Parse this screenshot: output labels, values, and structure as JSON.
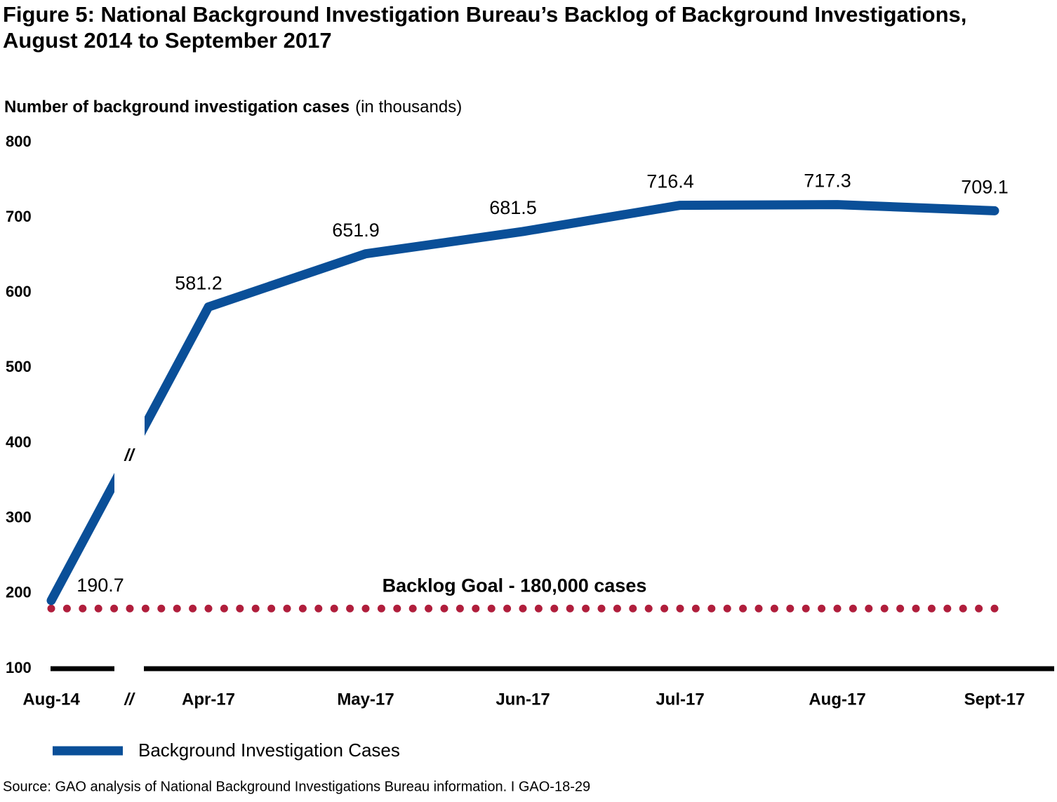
{
  "chart_data": {
    "type": "line",
    "title": "Figure 5: National Background Investigation Bureau’s Backlog of Background Investigations, August 2014 to September 2017",
    "y_label": "Number of background investigation cases",
    "y_label_unit": "(in thousands)",
    "categories": [
      "Aug-14",
      "Apr-17",
      "May-17",
      "Jun-17",
      "Jul-17",
      "Aug-17",
      "Sept-17"
    ],
    "series": [
      {
        "name": "Background Investigation Cases",
        "color": "#0a4f98",
        "values": [
          190.7,
          581.2,
          651.9,
          681.5,
          716.4,
          717.3,
          709.1
        ]
      }
    ],
    "ylim": [
      100,
      800
    ],
    "yticks": [
      100,
      200,
      300,
      400,
      500,
      600,
      700,
      800
    ],
    "grid": false,
    "axis_break_label": "//",
    "goal": {
      "value": 180,
      "label": "Backlog Goal - 180,000 cases",
      "color": "#b01e3c"
    },
    "source": "Source: GAO analysis of National Background Investigations Bureau information.  I  GAO-18-29"
  }
}
